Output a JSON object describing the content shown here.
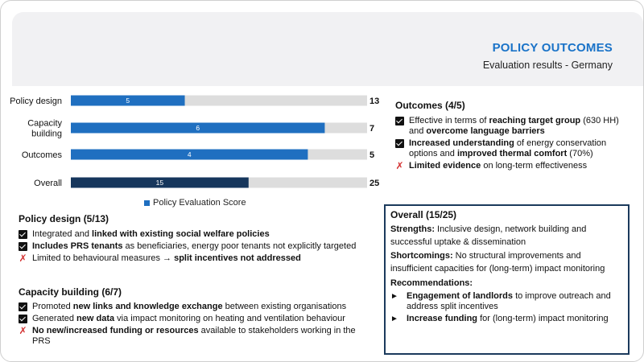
{
  "header": {
    "title": "POLICY OUTCOMES",
    "subtitle": "Evaluation results - Germany"
  },
  "chart_data": {
    "type": "bar",
    "orientation": "horizontal",
    "categories": [
      "Policy design",
      "Capacity building",
      "Outcomes",
      "Overall"
    ],
    "series": [
      {
        "name": "Policy Evaluation Score",
        "values": [
          5,
          6,
          4,
          15
        ]
      }
    ],
    "max_values": [
      13,
      7,
      5,
      25
    ],
    "legend": "bottom",
    "colors": {
      "score": "#1f6fc0",
      "overall": "#16365c",
      "background": "#dddddd"
    }
  },
  "policy_design": {
    "heading": "Policy design (5/13)",
    "items": [
      {
        "icon": "check",
        "parts": [
          {
            "t": "Integrated and ",
            "b": false
          },
          {
            "t": "linked with existing social welfare policies",
            "b": true
          }
        ]
      },
      {
        "icon": "check",
        "parts": [
          {
            "t": "Includes PRS tenants",
            "b": true
          },
          {
            "t": " as beneficiaries, energy poor tenants not explicitly targeted",
            "b": false
          }
        ]
      },
      {
        "icon": "cross",
        "parts": [
          {
            "t": "Limited to behavioural measures ",
            "b": false
          },
          {
            "t": "→",
            "b": false
          },
          {
            "t": " split incentives not addressed",
            "b": true
          }
        ]
      }
    ]
  },
  "capacity_building": {
    "heading": "Capacity building (6/7)",
    "items": [
      {
        "icon": "check",
        "parts": [
          {
            "t": "Promoted ",
            "b": false
          },
          {
            "t": "new links and knowledge exchange",
            "b": true
          },
          {
            "t": " between existing organisations",
            "b": false
          }
        ]
      },
      {
        "icon": "check",
        "parts": [
          {
            "t": "Generated ",
            "b": false
          },
          {
            "t": "new data",
            "b": true
          },
          {
            "t": " via impact monitoring on heating and ventilation behaviour",
            "b": false
          }
        ]
      },
      {
        "icon": "cross",
        "parts": [
          {
            "t": "No new/increased funding or resources",
            "b": true
          },
          {
            "t": " available to stakeholders working in the PRS",
            "b": false
          }
        ]
      }
    ]
  },
  "outcomes": {
    "heading": "Outcomes (4/5)",
    "items": [
      {
        "icon": "check",
        "parts": [
          {
            "t": "Effective in terms of ",
            "b": false
          },
          {
            "t": "reaching target group",
            "b": true
          },
          {
            "t": " (630 HH) and ",
            "b": false
          },
          {
            "t": "overcome language barriers",
            "b": true
          }
        ]
      },
      {
        "icon": "check",
        "parts": [
          {
            "t": "Increased understanding",
            "b": true
          },
          {
            "t": " of energy conservation options and ",
            "b": false
          },
          {
            "t": "improved thermal comfort",
            "b": true
          },
          {
            "t": " (70%)",
            "b": false
          }
        ]
      },
      {
        "icon": "cross",
        "parts": [
          {
            "t": "Limited evidence",
            "b": true
          },
          {
            "t": " on long-term effectiveness",
            "b": false
          }
        ]
      }
    ]
  },
  "overall": {
    "heading": "Overall (15/25)",
    "strengths_label": "Strengths:",
    "strengths_text": " Inclusive design, network building and successful uptake & dissemination",
    "shortcomings_label": "Shortcomings:",
    "shortcomings_text": " No structural improvements and insufficient capacities for (long-term) impact monitoring",
    "recommendations_label": "Recommendations:",
    "recommendations": [
      {
        "parts": [
          {
            "t": "Engagement of landlords",
            "b": true
          },
          {
            "t": " to improve outreach and address split incentives",
            "b": false
          }
        ]
      },
      {
        "parts": [
          {
            "t": "Increase funding",
            "b": true
          },
          {
            "t": " for (long-term) impact monitoring",
            "b": false
          }
        ]
      }
    ]
  }
}
